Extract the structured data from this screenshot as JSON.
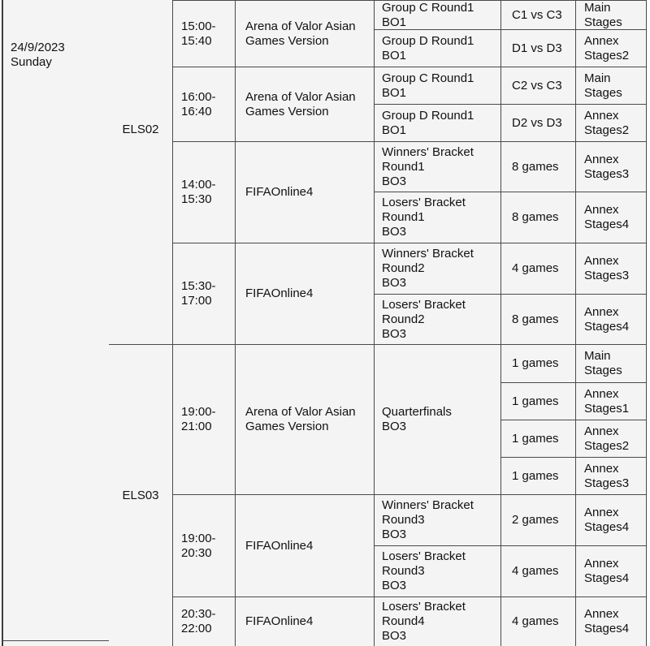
{
  "date_cell": "24/9/2023\nSunday",
  "sessions": [
    {
      "label": "ELS02",
      "blocks": [
        {
          "time": "15:00-\n15:40",
          "game": "Arena of Valor Asian\nGames Version",
          "rows": [
            {
              "round": "Group C Round1\nBO1",
              "match": "C1 vs C3",
              "stage": "Main\nStages"
            },
            {
              "round": "Group D Round1\nBO1",
              "match": "D1 vs D3",
              "stage": "Annex\nStages2"
            }
          ]
        },
        {
          "time": "16:00-\n16:40",
          "game": "Arena of Valor Asian\nGames Version",
          "rows": [
            {
              "round": "Group C Round1\nBO1",
              "match": "C2 vs C3",
              "stage": "Main\nStages"
            },
            {
              "round": "Group D Round1\nBO1",
              "match": "D2 vs D3",
              "stage": "Annex\nStages2"
            }
          ]
        },
        {
          "time": "14:00-\n15:30",
          "game": "FIFAOnline4",
          "rows": [
            {
              "round": "Winners' Bracket\nRound1\nBO3",
              "match": "8 games",
              "stage": "Annex\nStages3"
            },
            {
              "round": "Losers' Bracket\nRound1\nBO3",
              "match": "8 games",
              "stage": "Annex\nStages4"
            }
          ]
        },
        {
          "time": "15:30-\n17:00",
          "game": "FIFAOnline4",
          "rows": [
            {
              "round": "Winners' Bracket\nRound2\nBO3",
              "match": "4 games",
              "stage": "Annex\nStages3"
            },
            {
              "round": "Losers' Bracket\nRound2\nBO3",
              "match": "8 games",
              "stage": "Annex\nStages4"
            }
          ]
        }
      ]
    },
    {
      "label": "ELS03",
      "blocks": [
        {
          "time": "19:00-\n21:00",
          "game": "Arena of Valor Asian\nGames Version",
          "round": "Quarterfinals\nBO3",
          "rows": [
            {
              "match": "1 games",
              "stage": "Main\nStages"
            },
            {
              "match": "1 games",
              "stage": "Annex\nStages1"
            },
            {
              "match": "1 games",
              "stage": "Annex\nStages2"
            },
            {
              "match": "1 games",
              "stage": "Annex\nStages3"
            }
          ]
        },
        {
          "time": "19:00-\n20:30",
          "game": "FIFAOnline4",
          "rows": [
            {
              "round": "Winners' Bracket\nRound3\nBO3",
              "match": "2 games",
              "stage": "Annex\nStages4"
            },
            {
              "round": "Losers' Bracket\nRound3\nBO3",
              "match": "4 games",
              "stage": "Annex\nStages4"
            }
          ]
        },
        {
          "time": "20:30-\n22:00",
          "game": "FIFAOnline4",
          "rows": [
            {
              "round": "Losers' Bracket\nRound4\nBO3",
              "match": "4 games",
              "stage": "Annex\nStages4"
            }
          ]
        }
      ]
    }
  ],
  "colors": {
    "cell_bg": "#f4f4f4",
    "grid_line": "#4a4a4a",
    "text": "#111111"
  }
}
